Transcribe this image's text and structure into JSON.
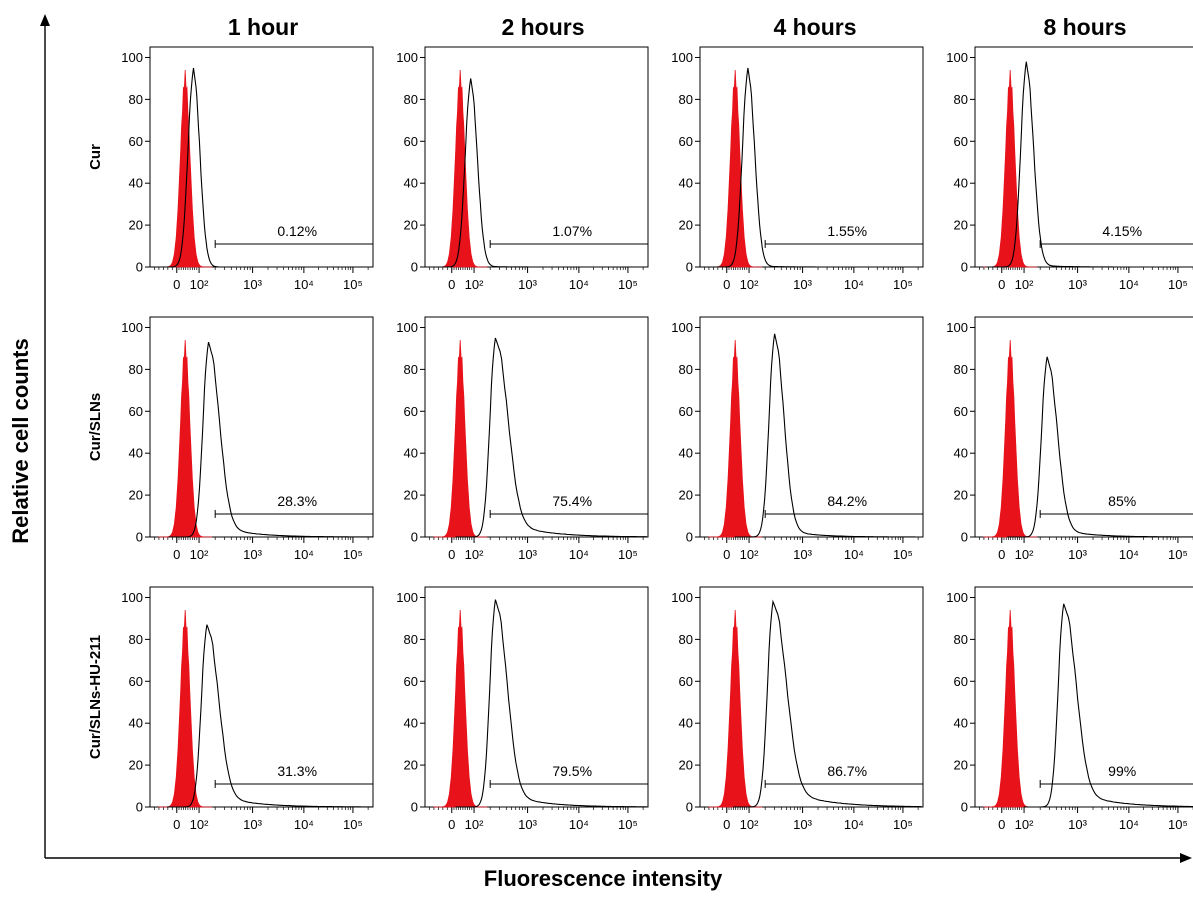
{
  "chart_data": {
    "type": "histogram-grid",
    "xlabel": "Fluorescence intensity",
    "ylabel": "Relative cell counts",
    "columns": [
      "1 hour",
      "2 hours",
      "4 hours",
      "8 hours"
    ],
    "rows": [
      "Cur",
      "Cur/SLNs",
      "Cur/SLNs-HU-211"
    ],
    "y_ticks": [
      "0",
      "20",
      "40",
      "60",
      "80",
      "100"
    ],
    "ylim": [
      0,
      105
    ],
    "x_scale": "biexponential",
    "x_ticks": [
      {
        "value": 0,
        "label": "0"
      },
      {
        "value": 100,
        "label": "10²"
      },
      {
        "value": 1000,
        "label": "10³"
      },
      {
        "value": 10000,
        "label": "10⁴"
      },
      {
        "value": 100000,
        "label": "10⁵"
      }
    ],
    "control_color": "#e8121b",
    "gate_start": 200,
    "gate_level": 11,
    "panels": [
      {
        "row": "Cur",
        "column": "1 hour",
        "gate_percent": "0.12%",
        "control_peak": {
          "x": 38,
          "y": 94
        },
        "sample_peak": {
          "x": 75,
          "y": 95,
          "tail": 0.0
        }
      },
      {
        "row": "Cur",
        "column": "2 hours",
        "gate_percent": "1.07%",
        "control_peak": {
          "x": 38,
          "y": 94
        },
        "sample_peak": {
          "x": 85,
          "y": 90,
          "tail": 0.02
        }
      },
      {
        "row": "Cur",
        "column": "4 hours",
        "gate_percent": "1.55%",
        "control_peak": {
          "x": 38,
          "y": 94
        },
        "sample_peak": {
          "x": 95,
          "y": 95,
          "tail": 0.03
        }
      },
      {
        "row": "Cur",
        "column": "8 hours",
        "gate_percent": "4.15%",
        "control_peak": {
          "x": 38,
          "y": 94
        },
        "sample_peak": {
          "x": 110,
          "y": 98,
          "tail": 0.06
        }
      },
      {
        "row": "Cur/SLNs",
        "column": "1 hour",
        "gate_percent": "28.3%",
        "control_peak": {
          "x": 38,
          "y": 94
        },
        "sample_peak": {
          "x": 150,
          "y": 93,
          "tail": 0.3
        }
      },
      {
        "row": "Cur/SLNs",
        "column": "2 hours",
        "gate_percent": "75.4%",
        "control_peak": {
          "x": 38,
          "y": 94
        },
        "sample_peak": {
          "x": 250,
          "y": 95,
          "tail": 0.4
        }
      },
      {
        "row": "Cur/SLNs",
        "column": "4 hours",
        "gate_percent": "84.2%",
        "control_peak": {
          "x": 38,
          "y": 94
        },
        "sample_peak": {
          "x": 300,
          "y": 97,
          "tail": 0.2
        }
      },
      {
        "row": "Cur/SLNs",
        "column": "8 hours",
        "gate_percent": "85%",
        "control_peak": {
          "x": 38,
          "y": 94
        },
        "sample_peak": {
          "x": 270,
          "y": 86,
          "tail": 0.25
        }
      },
      {
        "row": "Cur/SLNs-HU-211",
        "column": "1 hour",
        "gate_percent": "31.3%",
        "control_peak": {
          "x": 38,
          "y": 94
        },
        "sample_peak": {
          "x": 140,
          "y": 87,
          "tail": 0.35
        }
      },
      {
        "row": "Cur/SLNs-HU-211",
        "column": "2 hours",
        "gate_percent": "79.5%",
        "control_peak": {
          "x": 38,
          "y": 94
        },
        "sample_peak": {
          "x": 250,
          "y": 99,
          "tail": 0.35
        }
      },
      {
        "row": "Cur/SLNs-HU-211",
        "column": "4 hours",
        "gate_percent": "86.7%",
        "control_peak": {
          "x": 38,
          "y": 94
        },
        "sample_peak": {
          "x": 280,
          "y": 98,
          "tail": 0.45
        }
      },
      {
        "row": "Cur/SLNs-HU-211",
        "column": "8 hours",
        "gate_percent": "99%",
        "control_peak": {
          "x": 38,
          "y": 94
        },
        "sample_peak": {
          "x": 550,
          "y": 97,
          "tail": 0.4
        }
      }
    ]
  }
}
